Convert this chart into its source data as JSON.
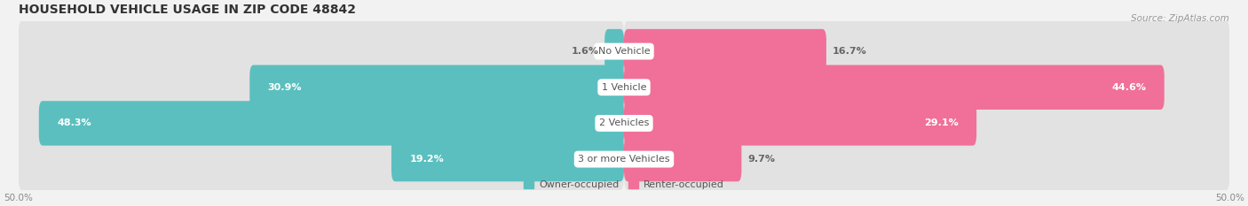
{
  "title": "HOUSEHOLD VEHICLE USAGE IN ZIP CODE 48842",
  "source": "Source: ZipAtlas.com",
  "categories": [
    "No Vehicle",
    "1 Vehicle",
    "2 Vehicles",
    "3 or more Vehicles"
  ],
  "owner_values": [
    1.6,
    30.9,
    48.3,
    19.2
  ],
  "renter_values": [
    16.7,
    44.6,
    29.1,
    9.7
  ],
  "owner_color": "#5BBFBF",
  "renter_color": "#F07099",
  "background_color": "#f2f2f2",
  "bar_bg_color": "#e2e2e2",
  "legend_owner": "Owner-occupied",
  "legend_renter": "Renter-occupied",
  "title_fontsize": 10,
  "source_fontsize": 7.5,
  "label_fontsize": 8,
  "category_fontsize": 8
}
